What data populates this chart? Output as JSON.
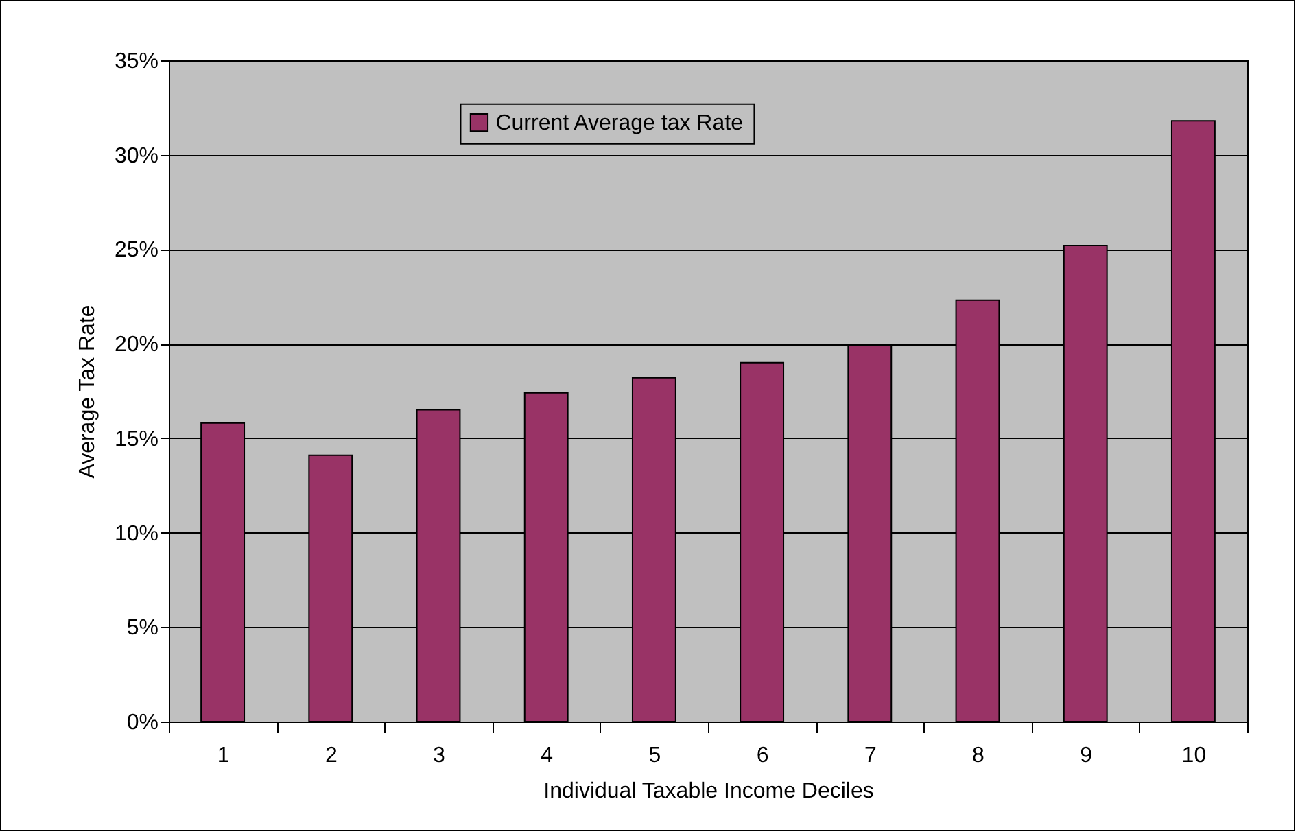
{
  "chart_data": {
    "type": "bar",
    "xlabel": "Individual Taxable Income Deciles",
    "ylabel": "Average Tax Rate",
    "categories": [
      "1",
      "2",
      "3",
      "4",
      "5",
      "6",
      "7",
      "8",
      "9",
      "10"
    ],
    "series": [
      {
        "name": "Current Average tax Rate",
        "color": "#993366",
        "values": [
          15.8,
          14.1,
          16.5,
          17.4,
          18.2,
          19.0,
          19.9,
          22.3,
          25.2,
          31.8
        ]
      }
    ],
    "ylim": [
      0,
      35
    ],
    "yticks": [
      {
        "value": 0,
        "label": "0%"
      },
      {
        "value": 5,
        "label": "5%"
      },
      {
        "value": 10,
        "label": "10%"
      },
      {
        "value": 15,
        "label": "15%"
      },
      {
        "value": 20,
        "label": "20%"
      },
      {
        "value": 25,
        "label": "25%"
      },
      {
        "value": 30,
        "label": "30%"
      },
      {
        "value": 35,
        "label": "35%"
      }
    ],
    "grid": "y",
    "legend": "top"
  }
}
